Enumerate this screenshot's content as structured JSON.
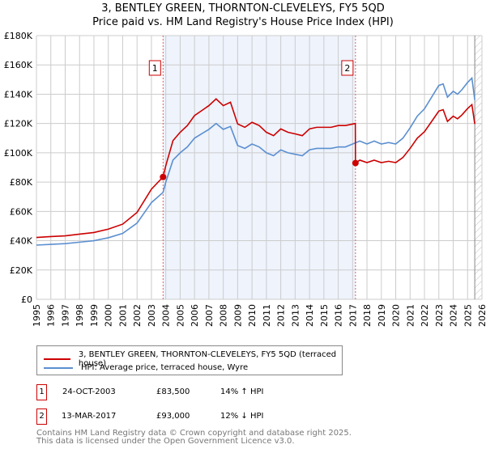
{
  "chart_data": {
    "type": "line",
    "title": "3, BENTLEY GREEN, THORNTON-CLEVELEYS, FY5 5QD",
    "subtitle": "Price paid vs. HM Land Registry's House Price Index (HPI)",
    "xlim": [
      1995,
      2026
    ],
    "ylim": [
      0,
      180000
    ],
    "x_ticks": [
      "1995",
      "1996",
      "1997",
      "1998",
      "1999",
      "2000",
      "2001",
      "2002",
      "2003",
      "2004",
      "2005",
      "2006",
      "2007",
      "2008",
      "2009",
      "2010",
      "2011",
      "2012",
      "2013",
      "2014",
      "2015",
      "2016",
      "2017",
      "2018",
      "2019",
      "2020",
      "2021",
      "2022",
      "2023",
      "2024",
      "2025",
      "2026"
    ],
    "y_ticks": [
      {
        "v": 0,
        "label": "£0"
      },
      {
        "v": 20000,
        "label": "£20K"
      },
      {
        "v": 40000,
        "label": "£40K"
      },
      {
        "v": 60000,
        "label": "£60K"
      },
      {
        "v": 80000,
        "label": "£80K"
      },
      {
        "v": 100000,
        "label": "£100K"
      },
      {
        "v": 120000,
        "label": "£120K"
      },
      {
        "v": 140000,
        "label": "£140K"
      },
      {
        "v": 160000,
        "label": "£160K"
      },
      {
        "v": 180000,
        "label": "£180K"
      }
    ],
    "grid": true,
    "shaded_period": [
      2003.81,
      2017.2
    ],
    "forecast_hatch_from": 2025.5,
    "series": [
      {
        "name": "3, BENTLEY GREEN, THORNTON-CLEVELEYS, FY5 5QD (terraced house)",
        "color": "#cc0000",
        "x": [
          1995,
          1996,
          1997,
          1998,
          1999,
          2000,
          2001,
          2002,
          2003,
          2003.81,
          2004,
          2004.5,
          2005,
          2005.5,
          2006,
          2006.5,
          2007,
          2007.5,
          2008,
          2008.5,
          2009,
          2009.5,
          2010,
          2010.5,
          2011,
          2011.5,
          2012,
          2012.5,
          2013,
          2013.5,
          2014,
          2014.5,
          2015,
          2015.5,
          2016,
          2016.5,
          2017.19,
          2017.2,
          2017.5,
          2018,
          2018.5,
          2019,
          2019.5,
          2020,
          2020.5,
          2021,
          2021.5,
          2022,
          2022.5,
          2023,
          2023.3,
          2023.6,
          2024,
          2024.3,
          2024.6,
          2025,
          2025.3,
          2025.5
        ],
        "y": [
          42200,
          42800,
          43300,
          44500,
          45600,
          47900,
          51300,
          59300,
          75200,
          83500,
          91200,
          108300,
          114000,
          118600,
          125400,
          128800,
          132200,
          136800,
          132200,
          134500,
          119700,
          117400,
          120800,
          118600,
          114000,
          111700,
          116300,
          114000,
          112900,
          111700,
          116300,
          117400,
          117400,
          117400,
          118600,
          118600,
          120000,
          93000,
          95000,
          93300,
          95000,
          93300,
          94200,
          93300,
          96800,
          103000,
          110000,
          114400,
          121400,
          128500,
          129400,
          121400,
          125000,
          123200,
          125800,
          130200,
          132900,
          119700
        ]
      },
      {
        "name": "HPI: Average price, terraced house, Wyre",
        "color": "#5b8fd0",
        "x": [
          1995,
          1996,
          1997,
          1998,
          1999,
          2000,
          2001,
          2002,
          2003,
          2003.81,
          2004,
          2004.5,
          2005,
          2005.5,
          2006,
          2006.5,
          2007,
          2007.5,
          2008,
          2008.5,
          2009,
          2009.5,
          2010,
          2010.5,
          2011,
          2011.5,
          2012,
          2012.5,
          2013,
          2013.5,
          2014,
          2014.5,
          2015,
          2015.5,
          2016,
          2016.5,
          2017,
          2017.5,
          2018,
          2018.5,
          2019,
          2019.5,
          2020,
          2020.5,
          2021,
          2021.5,
          2022,
          2022.5,
          2023,
          2023.3,
          2023.6,
          2024,
          2024.3,
          2024.6,
          2025,
          2025.3,
          2025.5
        ],
        "y": [
          37000,
          37500,
          38000,
          39000,
          40000,
          42000,
          45000,
          52000,
          66000,
          73000,
          80000,
          95000,
          100000,
          104000,
          110000,
          113000,
          116000,
          120000,
          116000,
          118000,
          105000,
          103000,
          106000,
          104000,
          100000,
          98000,
          102000,
          100000,
          99000,
          98000,
          102000,
          103000,
          103000,
          103000,
          104000,
          104000,
          106000,
          108000,
          106000,
          108000,
          106000,
          107000,
          106000,
          110000,
          117000,
          125000,
          130000,
          138000,
          146000,
          147000,
          138000,
          142000,
          140000,
          143000,
          148000,
          151000,
          136000
        ]
      }
    ],
    "annotations": [
      {
        "label": "1",
        "x": 2003.81,
        "y": 83500
      },
      {
        "label": "2",
        "x": 2017.2,
        "y": 93000
      }
    ]
  },
  "transactions": [
    {
      "num": "1",
      "date": "24-OCT-2003",
      "price": "£83,500",
      "hpi": "14% ↑ HPI"
    },
    {
      "num": "2",
      "date": "13-MAR-2017",
      "price": "£93,000",
      "hpi": "12% ↓ HPI"
    }
  ],
  "footer": [
    "Contains HM Land Registry data © Crown copyright and database right 2025.",
    "This data is licensed under the Open Government Licence v3.0."
  ]
}
